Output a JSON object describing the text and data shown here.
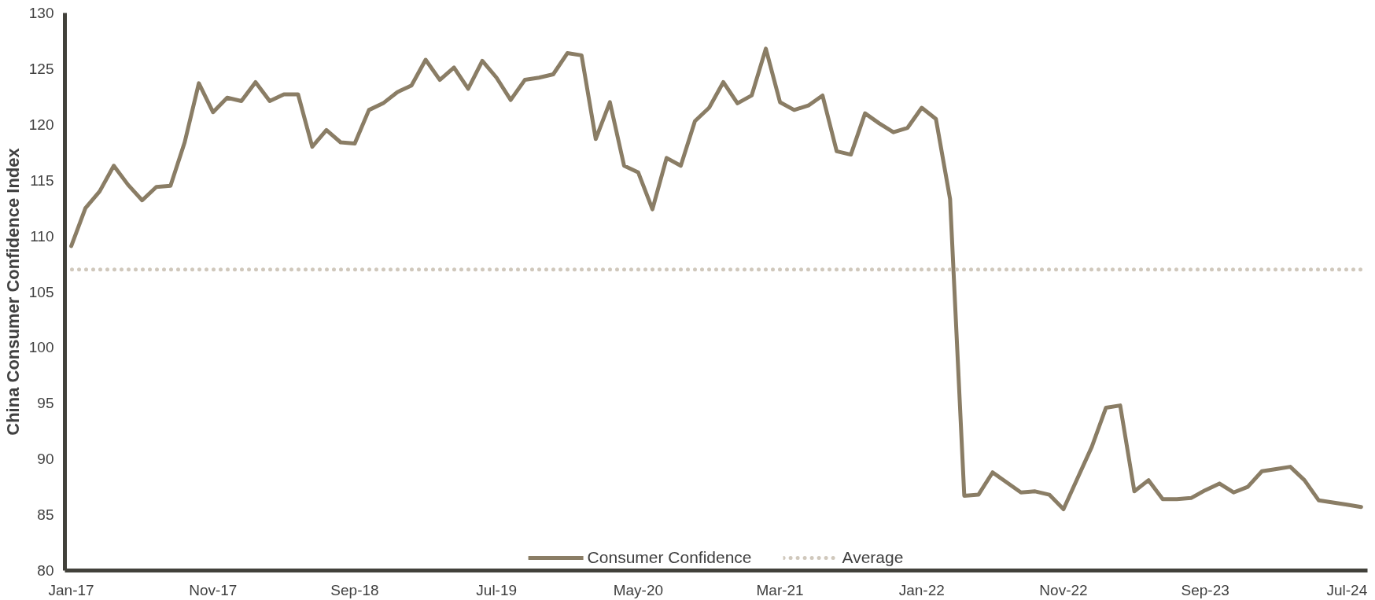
{
  "chart_data": {
    "type": "line",
    "ylabel": "China Consumer Confidence Index",
    "categories": [
      "Jan-17",
      null,
      null,
      null,
      null,
      null,
      null,
      null,
      null,
      null,
      "Nov-17",
      null,
      null,
      null,
      null,
      null,
      null,
      null,
      null,
      null,
      "Sep-18",
      null,
      null,
      null,
      null,
      null,
      null,
      null,
      null,
      null,
      "Jul-19",
      null,
      null,
      null,
      null,
      null,
      null,
      null,
      null,
      null,
      "May-20",
      null,
      null,
      null,
      null,
      null,
      null,
      null,
      null,
      null,
      "Mar-21",
      null,
      null,
      null,
      null,
      null,
      null,
      null,
      null,
      null,
      "Jan-22",
      null,
      null,
      null,
      null,
      null,
      null,
      null,
      null,
      null,
      "Nov-22",
      null,
      null,
      null,
      null,
      null,
      null,
      null,
      null,
      null,
      "Sep-23",
      null,
      null,
      null,
      null,
      null,
      null,
      null,
      null,
      null,
      "Jul-24",
      null
    ],
    "series": [
      {
        "name": "Consumer Confidence",
        "color": "#8a7d65",
        "values": [
          109.1,
          112.5,
          114.0,
          116.3,
          114.6,
          113.2,
          114.4,
          114.5,
          118.4,
          123.7,
          121.1,
          122.4,
          122.1,
          123.8,
          122.1,
          122.7,
          122.7,
          118.0,
          119.5,
          118.4,
          118.3,
          121.3,
          121.9,
          122.9,
          123.5,
          125.8,
          124.0,
          125.1,
          123.2,
          125.7,
          124.2,
          122.2,
          124.0,
          124.2,
          124.5,
          126.4,
          126.2,
          118.7,
          122.0,
          116.3,
          115.7,
          112.4,
          117.0,
          116.3,
          120.3,
          121.5,
          123.8,
          121.9,
          122.6,
          126.8,
          122.0,
          121.3,
          121.7,
          122.6,
          117.6,
          117.3,
          121.0,
          120.1,
          119.3,
          119.7,
          121.5,
          120.5,
          113.3,
          86.7,
          86.8,
          88.8,
          87.9,
          87.0,
          87.1,
          86.8,
          85.5,
          88.3,
          91.1,
          94.6,
          94.8,
          87.1,
          88.1,
          86.4,
          86.4,
          86.5,
          87.2,
          87.8,
          87.0,
          87.5,
          88.9,
          89.1,
          89.3,
          88.1,
          86.3,
          86.1,
          85.9,
          85.7
        ]
      }
    ],
    "ref_lines": [
      {
        "axis": "y",
        "value": 107,
        "label": "Average",
        "color": "#d0c8bc",
        "line_style": "dotted"
      }
    ],
    "ylim": [
      80,
      130
    ],
    "yticks": [
      80,
      85,
      90,
      95,
      100,
      105,
      110,
      115,
      120,
      125,
      130
    ],
    "grid": false,
    "legend": "bottom",
    "line_style": "solid",
    "marker": "none"
  }
}
